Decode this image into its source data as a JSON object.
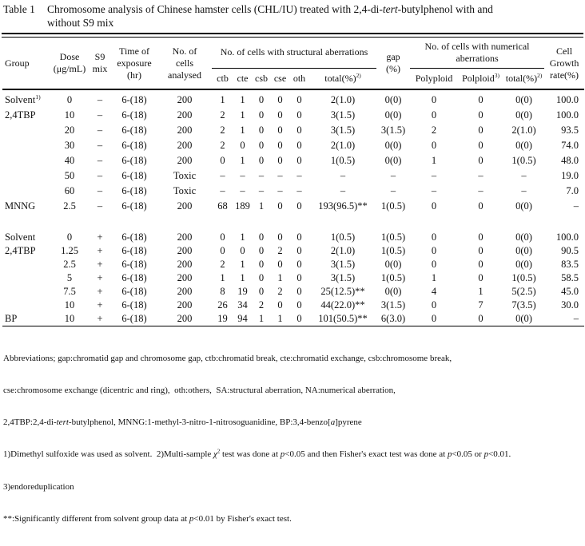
{
  "title": {
    "label": "Table 1",
    "line1": [
      {
        "t": "Chromosome analysis of Chinese hamster cells (CHL/IU) treated with 2,4-di-"
      },
      {
        "t": "tert",
        "i": true
      },
      {
        "t": "-butylphenol with and"
      }
    ],
    "line2": "without S9 mix"
  },
  "table": {
    "col_keys": [
      "group",
      "dose",
      "s9",
      "time",
      "cells",
      "ctb",
      "cte",
      "csb",
      "cse",
      "oth",
      "total-sa",
      "gap",
      "polyploid",
      "polploid",
      "total-na",
      "growth"
    ],
    "header": {
      "group": "Group",
      "dose": [
        "Dose",
        "(μg/mL)"
      ],
      "s9": [
        "S9",
        "mix"
      ],
      "time": [
        "Time of",
        "exposure",
        "(hr)"
      ],
      "cells": [
        "No. of",
        "cells",
        "analysed"
      ],
      "struct_span": "No. of cells with structural aberrations",
      "sub_cols": [
        "ctb",
        "cte",
        "csb",
        "cse",
        "oth"
      ],
      "struct_total": [
        {
          "t": "total(%)"
        },
        {
          "t": "2)",
          "sup": true
        }
      ],
      "gap": [
        "gap",
        "(%)"
      ],
      "num_span": [
        "No. of cells with numerical",
        "aberrations"
      ],
      "polyploid": "Polyploid",
      "polploid": [
        {
          "t": "Polploid"
        },
        {
          "t": "3)",
          "sup": true
        }
      ],
      "num_total": [
        {
          "t": "total(%)"
        },
        {
          "t": "2)",
          "sup": true
        }
      ],
      "growth": [
        "Cell",
        "Growth",
        "rate(%)"
      ]
    },
    "sections": [
      {
        "rows": [
          [
            [
              {
                "t": "Solvent"
              },
              {
                "t": "1)",
                "sup": true
              }
            ],
            "0",
            "–",
            "6-(18)",
            "200",
            "1",
            "1",
            "0",
            "0",
            "0",
            "2(1.0)",
            "0(0)",
            "0",
            "0",
            "0(0)",
            "100.0"
          ],
          [
            "2,4TBP",
            "10",
            "–",
            "6-(18)",
            "200",
            "2",
            "1",
            "0",
            "0",
            "0",
            "3(1.5)",
            "0(0)",
            "0",
            "0",
            "0(0)",
            "100.0"
          ],
          [
            "",
            "20",
            "–",
            "6-(18)",
            "200",
            "2",
            "1",
            "0",
            "0",
            "0",
            "3(1.5)",
            "3(1.5)",
            "2",
            "0",
            "2(1.0)",
            "93.5"
          ],
          [
            "",
            "30",
            "–",
            "6-(18)",
            "200",
            "2",
            "0",
            "0",
            "0",
            "0",
            "2(1.0)",
            "0(0)",
            "0",
            "0",
            "0(0)",
            "74.0"
          ],
          [
            "",
            "40",
            "–",
            "6-(18)",
            "200",
            "0",
            "1",
            "0",
            "0",
            "0",
            "1(0.5)",
            "0(0)",
            "1",
            "0",
            "1(0.5)",
            "48.0"
          ],
          [
            "",
            "50",
            "–",
            "6-(18)",
            "Toxic",
            "–",
            "–",
            "–",
            "–",
            "–",
            "–",
            "–",
            "–",
            "–",
            "–",
            "19.0"
          ],
          [
            "",
            "60",
            "–",
            "6-(18)",
            "Toxic",
            "–",
            "–",
            "–",
            "–",
            "–",
            "–",
            "–",
            "–",
            "–",
            "–",
            "7.0"
          ],
          [
            "MNNG",
            "2.5",
            "–",
            "6-(18)",
            "200",
            "68",
            "189",
            "1",
            "0",
            "0",
            "193(96.5)**",
            "1(0.5)",
            "0",
            "0",
            "0(0)",
            "–"
          ]
        ]
      },
      {
        "rows": [
          [
            "Solvent",
            "0",
            "+",
            "6-(18)",
            "200",
            "0",
            "1",
            "0",
            "0",
            "0",
            "1(0.5)",
            "1(0.5)",
            "0",
            "0",
            "0(0)",
            "100.0"
          ],
          [
            "2,4TBP",
            "1.25",
            "+",
            "6-(18)",
            "200",
            "0",
            "0",
            "0",
            "2",
            "0",
            "2(1.0)",
            "1(0.5)",
            "0",
            "0",
            "0(0)",
            "90.5"
          ],
          [
            "",
            "2.5",
            "+",
            "6-(18)",
            "200",
            "2",
            "1",
            "0",
            "0",
            "0",
            "3(1.5)",
            "0(0)",
            "0",
            "0",
            "0(0)",
            "83.5"
          ],
          [
            "",
            "5",
            "+",
            "6-(18)",
            "200",
            "1",
            "1",
            "0",
            "1",
            "0",
            "3(1.5)",
            "1(0.5)",
            "1",
            "0",
            "1(0.5)",
            "58.5"
          ],
          [
            "",
            "7.5",
            "+",
            "6-(18)",
            "200",
            "8",
            "19",
            "0",
            "2",
            "0",
            "25(12.5)**",
            "0(0)",
            "4",
            "1",
            "5(2.5)",
            "45.0"
          ],
          [
            "",
            "10",
            "+",
            "6-(18)",
            "200",
            "26",
            "34",
            "2",
            "0",
            "0",
            "44(22.0)**",
            "3(1.5)",
            "0",
            "7",
            "7(3.5)",
            "30.0"
          ],
          [
            "BP",
            "10",
            "+",
            "6-(18)",
            "200",
            "19",
            "94",
            "1",
            "1",
            "0",
            "101(50.5)**",
            "6(3.0)",
            "0",
            "0",
            "0(0)",
            "–"
          ]
        ]
      }
    ]
  },
  "footnotes": {
    "line1": "Abbreviations; gap:chromatid gap and chromosome gap, ctb:chromatid break, cte:chromatid exchange, csb:chromosome break,",
    "line2": "cse:chromosome exchange (dicentric and ring),  oth:others,  SA:structural aberration, NA:numerical aberration,",
    "line3": [
      {
        "t": "2,4TBP:2,4-di-"
      },
      {
        "t": "tert",
        "i": true
      },
      {
        "t": "-butylphenol, MNNG:1-methyl-3-nitro-1-nitrosoguanidine, BP:3,4-benzo["
      },
      {
        "t": "a",
        "i": true
      },
      {
        "t": "]pyrene"
      }
    ],
    "line4": [
      {
        "t": "1)Dimethyl sulfoxide was used as solvent.  2)Multi-sample "
      },
      {
        "t": "χ",
        "i": true
      },
      {
        "t": "2",
        "sup": true
      },
      {
        "t": " test was done at "
      },
      {
        "t": "p",
        "i": true
      },
      {
        "t": "<0.05 and then Fisher's exact test was done at "
      },
      {
        "t": "p",
        "i": true
      },
      {
        "t": "<0.05 or "
      },
      {
        "t": "p",
        "i": true
      },
      {
        "t": "<0.01."
      }
    ],
    "line5": "3)endoreduplication",
    "line6": [
      {
        "t": "**:Significantly different from solvent group data at "
      },
      {
        "t": "p",
        "i": true
      },
      {
        "t": "<0.01 by Fisher's exact test."
      }
    ]
  }
}
